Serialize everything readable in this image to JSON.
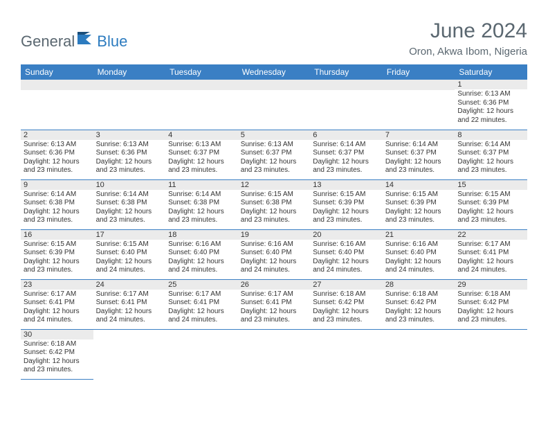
{
  "brand": {
    "general": "General",
    "blue": "Blue"
  },
  "title": "June 2024",
  "location": "Oron, Akwa Ibom, Nigeria",
  "colors": {
    "header_bg": "#3a7fc4",
    "header_text": "#ffffff",
    "daynum_bg": "#ebebeb",
    "border": "#3a7fc4",
    "title_color": "#5a6770",
    "logo_blue": "#2c7bbf"
  },
  "weekdays": [
    "Sunday",
    "Monday",
    "Tuesday",
    "Wednesday",
    "Thursday",
    "Friday",
    "Saturday"
  ],
  "weeks": [
    [
      null,
      null,
      null,
      null,
      null,
      null,
      {
        "n": "1",
        "sr": "Sunrise: 6:13 AM",
        "ss": "Sunset: 6:36 PM",
        "dl": "Daylight: 12 hours and 22 minutes."
      }
    ],
    [
      {
        "n": "2",
        "sr": "Sunrise: 6:13 AM",
        "ss": "Sunset: 6:36 PM",
        "dl": "Daylight: 12 hours and 23 minutes."
      },
      {
        "n": "3",
        "sr": "Sunrise: 6:13 AM",
        "ss": "Sunset: 6:36 PM",
        "dl": "Daylight: 12 hours and 23 minutes."
      },
      {
        "n": "4",
        "sr": "Sunrise: 6:13 AM",
        "ss": "Sunset: 6:37 PM",
        "dl": "Daylight: 12 hours and 23 minutes."
      },
      {
        "n": "5",
        "sr": "Sunrise: 6:13 AM",
        "ss": "Sunset: 6:37 PM",
        "dl": "Daylight: 12 hours and 23 minutes."
      },
      {
        "n": "6",
        "sr": "Sunrise: 6:14 AM",
        "ss": "Sunset: 6:37 PM",
        "dl": "Daylight: 12 hours and 23 minutes."
      },
      {
        "n": "7",
        "sr": "Sunrise: 6:14 AM",
        "ss": "Sunset: 6:37 PM",
        "dl": "Daylight: 12 hours and 23 minutes."
      },
      {
        "n": "8",
        "sr": "Sunrise: 6:14 AM",
        "ss": "Sunset: 6:37 PM",
        "dl": "Daylight: 12 hours and 23 minutes."
      }
    ],
    [
      {
        "n": "9",
        "sr": "Sunrise: 6:14 AM",
        "ss": "Sunset: 6:38 PM",
        "dl": "Daylight: 12 hours and 23 minutes."
      },
      {
        "n": "10",
        "sr": "Sunrise: 6:14 AM",
        "ss": "Sunset: 6:38 PM",
        "dl": "Daylight: 12 hours and 23 minutes."
      },
      {
        "n": "11",
        "sr": "Sunrise: 6:14 AM",
        "ss": "Sunset: 6:38 PM",
        "dl": "Daylight: 12 hours and 23 minutes."
      },
      {
        "n": "12",
        "sr": "Sunrise: 6:15 AM",
        "ss": "Sunset: 6:38 PM",
        "dl": "Daylight: 12 hours and 23 minutes."
      },
      {
        "n": "13",
        "sr": "Sunrise: 6:15 AM",
        "ss": "Sunset: 6:39 PM",
        "dl": "Daylight: 12 hours and 23 minutes."
      },
      {
        "n": "14",
        "sr": "Sunrise: 6:15 AM",
        "ss": "Sunset: 6:39 PM",
        "dl": "Daylight: 12 hours and 23 minutes."
      },
      {
        "n": "15",
        "sr": "Sunrise: 6:15 AM",
        "ss": "Sunset: 6:39 PM",
        "dl": "Daylight: 12 hours and 23 minutes."
      }
    ],
    [
      {
        "n": "16",
        "sr": "Sunrise: 6:15 AM",
        "ss": "Sunset: 6:39 PM",
        "dl": "Daylight: 12 hours and 23 minutes."
      },
      {
        "n": "17",
        "sr": "Sunrise: 6:15 AM",
        "ss": "Sunset: 6:40 PM",
        "dl": "Daylight: 12 hours and 24 minutes."
      },
      {
        "n": "18",
        "sr": "Sunrise: 6:16 AM",
        "ss": "Sunset: 6:40 PM",
        "dl": "Daylight: 12 hours and 24 minutes."
      },
      {
        "n": "19",
        "sr": "Sunrise: 6:16 AM",
        "ss": "Sunset: 6:40 PM",
        "dl": "Daylight: 12 hours and 24 minutes."
      },
      {
        "n": "20",
        "sr": "Sunrise: 6:16 AM",
        "ss": "Sunset: 6:40 PM",
        "dl": "Daylight: 12 hours and 24 minutes."
      },
      {
        "n": "21",
        "sr": "Sunrise: 6:16 AM",
        "ss": "Sunset: 6:40 PM",
        "dl": "Daylight: 12 hours and 24 minutes."
      },
      {
        "n": "22",
        "sr": "Sunrise: 6:17 AM",
        "ss": "Sunset: 6:41 PM",
        "dl": "Daylight: 12 hours and 24 minutes."
      }
    ],
    [
      {
        "n": "23",
        "sr": "Sunrise: 6:17 AM",
        "ss": "Sunset: 6:41 PM",
        "dl": "Daylight: 12 hours and 24 minutes."
      },
      {
        "n": "24",
        "sr": "Sunrise: 6:17 AM",
        "ss": "Sunset: 6:41 PM",
        "dl": "Daylight: 12 hours and 24 minutes."
      },
      {
        "n": "25",
        "sr": "Sunrise: 6:17 AM",
        "ss": "Sunset: 6:41 PM",
        "dl": "Daylight: 12 hours and 24 minutes."
      },
      {
        "n": "26",
        "sr": "Sunrise: 6:17 AM",
        "ss": "Sunset: 6:41 PM",
        "dl": "Daylight: 12 hours and 23 minutes."
      },
      {
        "n": "27",
        "sr": "Sunrise: 6:18 AM",
        "ss": "Sunset: 6:42 PM",
        "dl": "Daylight: 12 hours and 23 minutes."
      },
      {
        "n": "28",
        "sr": "Sunrise: 6:18 AM",
        "ss": "Sunset: 6:42 PM",
        "dl": "Daylight: 12 hours and 23 minutes."
      },
      {
        "n": "29",
        "sr": "Sunrise: 6:18 AM",
        "ss": "Sunset: 6:42 PM",
        "dl": "Daylight: 12 hours and 23 minutes."
      }
    ],
    [
      {
        "n": "30",
        "sr": "Sunrise: 6:18 AM",
        "ss": "Sunset: 6:42 PM",
        "dl": "Daylight: 12 hours and 23 minutes."
      },
      null,
      null,
      null,
      null,
      null,
      null
    ]
  ]
}
